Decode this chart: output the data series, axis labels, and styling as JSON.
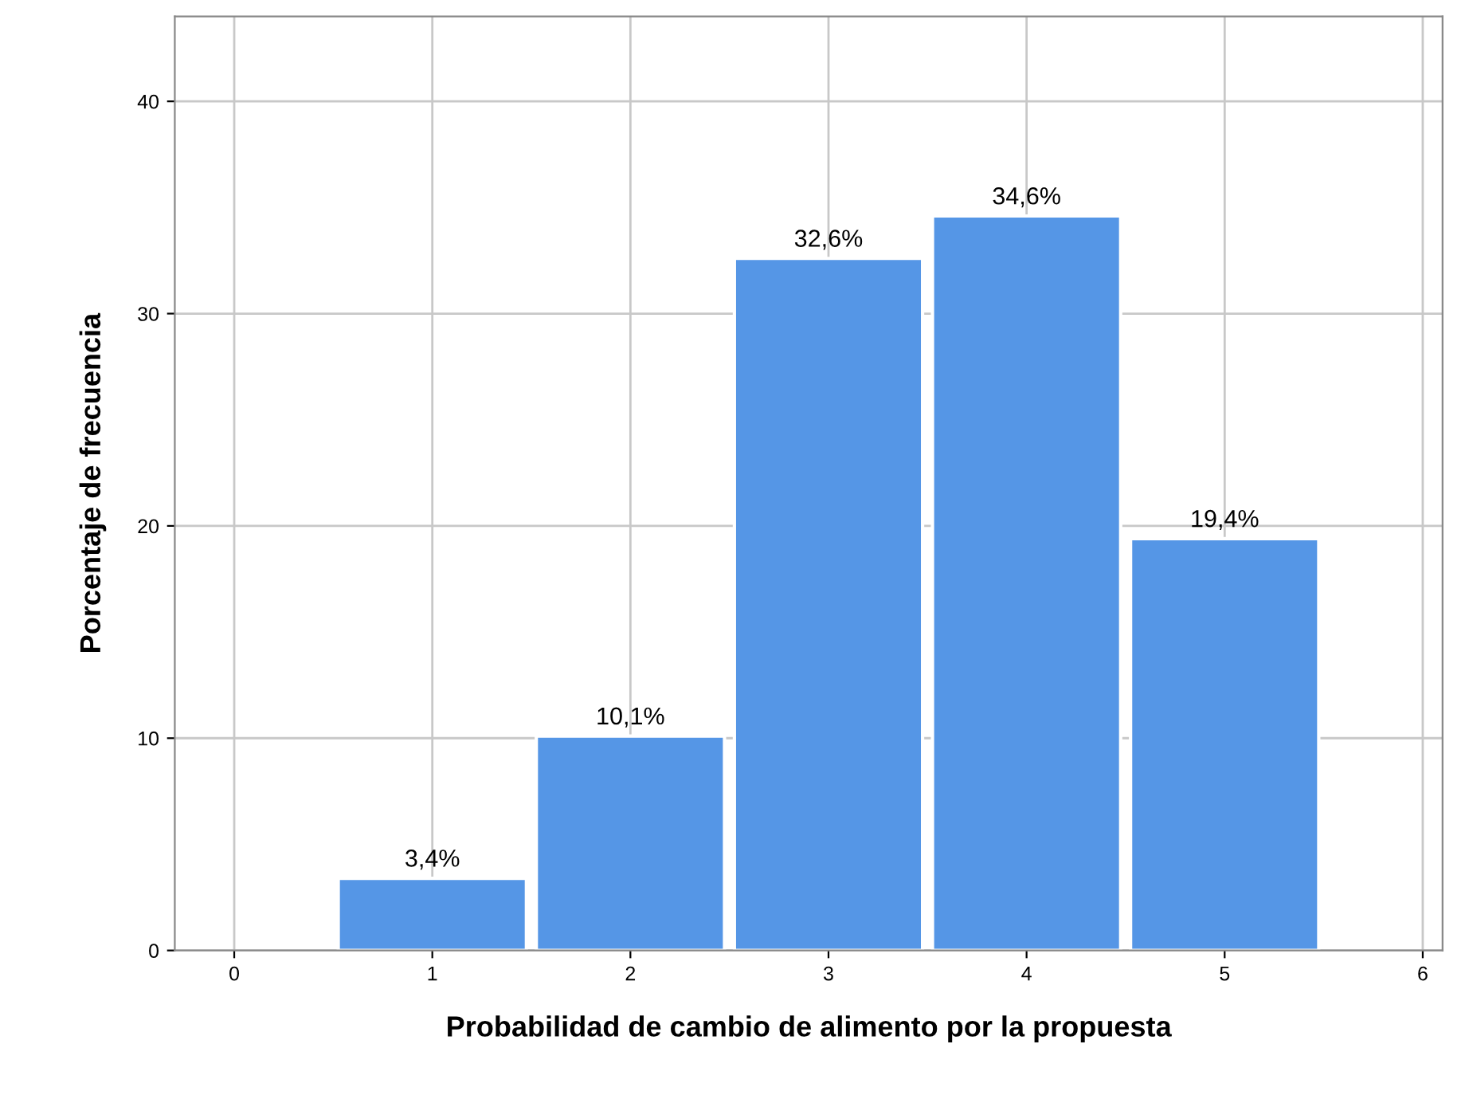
{
  "chart_data": {
    "type": "bar",
    "xlabel": "Probabilidad de cambio de alimento por la propuesta",
    "ylabel": "Porcentaje de frecuencia",
    "x": [
      1,
      2,
      3,
      4,
      5
    ],
    "values": [
      3.4,
      10.1,
      32.6,
      34.6,
      19.4
    ],
    "color": "#5596e6",
    "value_labels": [
      "3,4%",
      "10,1%",
      "32,6%",
      "34,6%",
      "19,4%"
    ],
    "xlim": [
      -0.3,
      6.1
    ],
    "xticks": [
      0,
      1,
      2,
      3,
      4,
      5,
      6
    ],
    "ylim": [
      0,
      44
    ],
    "yticks": [
      0,
      10,
      20,
      30,
      40
    ],
    "grid": true
  }
}
